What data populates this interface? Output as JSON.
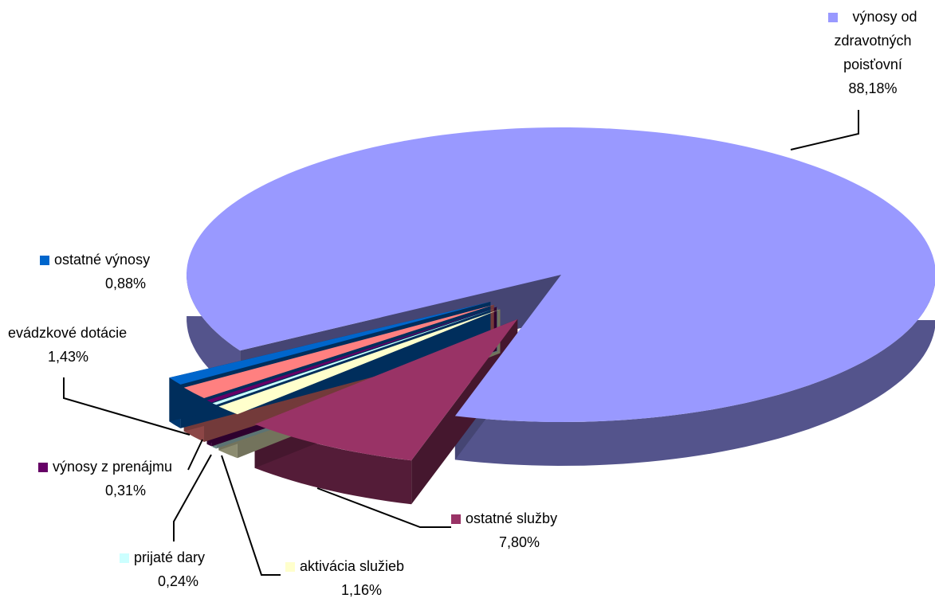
{
  "chart_data": {
    "type": "pie",
    "style": "3d-exploded",
    "slices": [
      {
        "label": "výnosy od zdravotných poisťovní",
        "value": 88.18,
        "display": "88,18%",
        "color": "#9999FF"
      },
      {
        "label": "ostatné služby",
        "value": 7.8,
        "display": "7,80%",
        "color": "#993366"
      },
      {
        "label": "aktivácia služieb",
        "value": 1.16,
        "display": "1,16%",
        "color": "#FFFFCC"
      },
      {
        "label": "prijaté dary",
        "value": 0.24,
        "display": "0,24%",
        "color": "#CCFFFF"
      },
      {
        "label": "výnosy z prenájmu",
        "value": 0.31,
        "display": "0,31%",
        "color": "#660066"
      },
      {
        "label": "prevádzkové dotácie",
        "value": 1.43,
        "display": "1,43%",
        "color": "#FF8080"
      },
      {
        "label": "ostatné výnosy",
        "value": 0.88,
        "display": "0,88%",
        "color": "#0066CC"
      }
    ],
    "legend": "none"
  },
  "labels": {
    "zdrav_l1": "výnosy od",
    "zdrav_l2": "zdravotných",
    "zdrav_l3": "poisťovní",
    "zdrav_pct": "88,18%",
    "sluzby": "ostatné služby",
    "sluzby_pct": "7,80%",
    "aktivacia": "aktivácia služieb",
    "aktivacia_pct": "1,16%",
    "dary": "prijaté dary",
    "dary_pct": "0,24%",
    "prenajom": "výnosy z prenájmu",
    "prenajom_pct": "0,31%",
    "dotacie": "evádzkové dotácie",
    "dotacie_pct": "1,43%",
    "ostatne": "ostatné výnosy",
    "ostatne_pct": "0,88%"
  }
}
